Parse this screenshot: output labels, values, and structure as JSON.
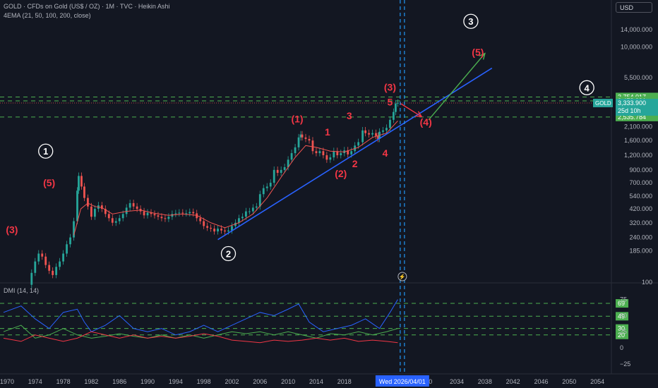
{
  "header": {
    "title": "GOLD · CFDs on Gold (US$ / OZ) · 1M · TVC · Heikin Ashi",
    "indicator": "4EMA (21, 50, 100, 200, close)",
    "currency": "USD"
  },
  "dmi_label": "DMI (14, 14)",
  "colors": {
    "bg": "#131722",
    "up": "#26a69a",
    "down": "#ef5350",
    "trendline": "#2962ff",
    "arrow_up": "#4caf50",
    "wave_red": "#f23645",
    "wave_white": "#ffffff",
    "dashed_green": "#4caf50",
    "cursor_line": "#2196f3"
  },
  "chart_data": [
    {
      "type": "candlestick",
      "scale": "log",
      "price_axis_ticks": [
        "14,000.000",
        "10,000.000",
        "5,500.000",
        "2,100.000",
        "1,600.000",
        "1,200.000",
        "900.000",
        "700.000",
        "540.000",
        "420.000",
        "320.000",
        "240.000",
        "185.000",
        "100"
      ],
      "price_axis_values": [
        14000,
        10000,
        5500,
        2100,
        1600,
        1200,
        900,
        700,
        540,
        420,
        320,
        240,
        185,
        100
      ],
      "ylim": [
        100,
        19000
      ],
      "price_labels": [
        {
          "text": "3,754.017",
          "value": 3754.017,
          "color": "#4caf50"
        },
        {
          "text": "3,478.991",
          "value": 3478.991,
          "color": "#4caf50"
        },
        {
          "text": "2,535.784",
          "value": 2535.784,
          "color": "#4caf50"
        }
      ],
      "current_price": {
        "symbol": "GOLD",
        "price": "3,333.900",
        "countdown": "25d 10h",
        "value": 3333.9
      },
      "time_axis_ticks": [
        "1970",
        "1974",
        "1978",
        "1982",
        "1986",
        "1990",
        "1994",
        "1998",
        "2002",
        "2006",
        "2010",
        "2014",
        "2018",
        "30",
        "2034",
        "2038",
        "2042",
        "2046",
        "2050",
        "2054"
      ],
      "time_axis_years": [
        1970,
        1974,
        1978,
        1982,
        1986,
        1990,
        1994,
        1998,
        2002,
        2006,
        2010,
        2014,
        2018,
        2030,
        2034,
        2038,
        2042,
        2046,
        2050,
        2054
      ],
      "xlim": [
        1969.0,
        2056.0
      ],
      "cursor_date_label": "Wed 2026/04/01",
      "cursor_year": 2026.25,
      "price_series": [
        [
          1973.0,
          95
        ],
        [
          1973.5,
          120
        ],
        [
          1974.0,
          150
        ],
        [
          1974.5,
          175
        ],
        [
          1975.0,
          165
        ],
        [
          1975.5,
          140
        ],
        [
          1976.0,
          125
        ],
        [
          1976.5,
          115
        ],
        [
          1977.0,
          135
        ],
        [
          1977.5,
          150
        ],
        [
          1978.0,
          175
        ],
        [
          1978.5,
          210
        ],
        [
          1979.0,
          240
        ],
        [
          1979.5,
          330
        ],
        [
          1980.0,
          600
        ],
        [
          1980.2,
          800
        ],
        [
          1980.6,
          650
        ],
        [
          1981.0,
          520
        ],
        [
          1981.5,
          440
        ],
        [
          1982.0,
          360
        ],
        [
          1982.5,
          420
        ],
        [
          1983.0,
          450
        ],
        [
          1983.5,
          420
        ],
        [
          1984.0,
          380
        ],
        [
          1984.5,
          350
        ],
        [
          1985.0,
          320
        ],
        [
          1985.5,
          330
        ],
        [
          1986.0,
          350
        ],
        [
          1986.5,
          380
        ],
        [
          1987.0,
          430
        ],
        [
          1987.5,
          470
        ],
        [
          1988.0,
          440
        ],
        [
          1988.5,
          420
        ],
        [
          1989.0,
          400
        ],
        [
          1989.5,
          370
        ],
        [
          1990.0,
          390
        ],
        [
          1990.5,
          380
        ],
        [
          1991.0,
          370
        ],
        [
          1991.5,
          360
        ],
        [
          1992.0,
          350
        ],
        [
          1992.5,
          345
        ],
        [
          1993.0,
          360
        ],
        [
          1993.5,
          380
        ],
        [
          1994.0,
          385
        ],
        [
          1994.5,
          390
        ],
        [
          1995.0,
          385
        ],
        [
          1995.5,
          385
        ],
        [
          1996.0,
          395
        ],
        [
          1996.5,
          385
        ],
        [
          1997.0,
          350
        ],
        [
          1997.5,
          330
        ],
        [
          1998.0,
          300
        ],
        [
          1998.5,
          290
        ],
        [
          1999.0,
          285
        ],
        [
          1999.5,
          270
        ],
        [
          2000.0,
          285
        ],
        [
          2000.5,
          275
        ],
        [
          2001.0,
          270
        ],
        [
          2001.5,
          275
        ],
        [
          2002.0,
          300
        ],
        [
          2002.5,
          320
        ],
        [
          2003.0,
          350
        ],
        [
          2003.5,
          360
        ],
        [
          2004.0,
          400
        ],
        [
          2004.5,
          400
        ],
        [
          2005.0,
          430
        ],
        [
          2005.5,
          440
        ],
        [
          2006.0,
          560
        ],
        [
          2006.5,
          630
        ],
        [
          2007.0,
          650
        ],
        [
          2007.5,
          700
        ],
        [
          2008.0,
          900
        ],
        [
          2008.5,
          850
        ],
        [
          2009.0,
          900
        ],
        [
          2009.5,
          950
        ],
        [
          2010.0,
          1100
        ],
        [
          2010.5,
          1250
        ],
        [
          2011.0,
          1400
        ],
        [
          2011.5,
          1700
        ],
        [
          2011.8,
          1800
        ],
        [
          2012.0,
          1700
        ],
        [
          2012.5,
          1650
        ],
        [
          2013.0,
          1600
        ],
        [
          2013.5,
          1300
        ],
        [
          2014.0,
          1250
        ],
        [
          2014.5,
          1300
        ],
        [
          2015.0,
          1200
        ],
        [
          2015.5,
          1100
        ],
        [
          2016.0,
          1150
        ],
        [
          2016.5,
          1300
        ],
        [
          2017.0,
          1200
        ],
        [
          2017.5,
          1250
        ],
        [
          2018.0,
          1320
        ],
        [
          2018.5,
          1220
        ],
        [
          2019.0,
          1300
        ],
        [
          2019.5,
          1450
        ],
        [
          2020.0,
          1550
        ],
        [
          2020.6,
          1950
        ],
        [
          2021.0,
          1850
        ],
        [
          2021.5,
          1800
        ],
        [
          2022.0,
          1850
        ],
        [
          2022.5,
          1750
        ],
        [
          2022.8,
          1650
        ],
        [
          2023.0,
          1900
        ],
        [
          2023.5,
          1950
        ],
        [
          2024.0,
          2050
        ],
        [
          2024.5,
          2400
        ],
        [
          2025.0,
          2800
        ],
        [
          2025.3,
          3300
        ],
        [
          2025.6,
          3350
        ]
      ],
      "ema_series": [
        [
          1979.5,
          250
        ],
        [
          1980.5,
          420
        ],
        [
          1981.5,
          470
        ],
        [
          1982.5,
          440
        ],
        [
          1983.5,
          430
        ],
        [
          1985.0,
          380
        ],
        [
          1987.0,
          400
        ],
        [
          1989.0,
          410
        ],
        [
          1991.0,
          385
        ],
        [
          1993.0,
          370
        ],
        [
          1995.0,
          380
        ],
        [
          1997.0,
          370
        ],
        [
          1999.0,
          320
        ],
        [
          2001.0,
          290
        ],
        [
          2003.0,
          320
        ],
        [
          2005.0,
          380
        ],
        [
          2007.0,
          520
        ],
        [
          2009.0,
          780
        ],
        [
          2011.0,
          1150
        ],
        [
          2012.5,
          1450
        ],
        [
          2014.0,
          1400
        ],
        [
          2016.0,
          1300
        ],
        [
          2018.0,
          1280
        ],
        [
          2020.0,
          1400
        ],
        [
          2022.0,
          1700
        ],
        [
          2024.0,
          1850
        ],
        [
          2025.6,
          2350
        ]
      ],
      "trendline": {
        "from": [
          2000.0,
          230
        ],
        "to": [
          2039.0,
          6600
        ]
      },
      "horizontal_levels": [
        3754.017,
        3478.991,
        2535.784
      ],
      "projection_arrow_up": {
        "from": [
          2030.0,
          2400
        ],
        "to": [
          2038.0,
          8800
        ]
      },
      "projection_arrow_down": {
        "from": [
          2026.0,
          3300
        ],
        "to": [
          2029.0,
          2550
        ]
      },
      "dotted_level": 3333.9,
      "wave_labels": [
        {
          "text": "(3)",
          "x": 1970.7,
          "y": 280,
          "color": "#f23645",
          "circled": false
        },
        {
          "text": "(5)",
          "x": 1976.0,
          "y": 700,
          "color": "#f23645",
          "circled": false
        },
        {
          "text": "1",
          "x": 1975.5,
          "y": 1300,
          "color": "#ffffff",
          "circled": true
        },
        {
          "text": "2",
          "x": 2001.5,
          "y": 175,
          "color": "#ffffff",
          "circled": true
        },
        {
          "text": "(1)",
          "x": 2011.3,
          "y": 2450,
          "color": "#f23645",
          "circled": false
        },
        {
          "text": "1",
          "x": 2015.6,
          "y": 1900,
          "color": "#f23645",
          "circled": false
        },
        {
          "text": "3",
          "x": 2018.7,
          "y": 2600,
          "color": "#f23645",
          "circled": false
        },
        {
          "text": "2",
          "x": 2019.5,
          "y": 1020,
          "color": "#f23645",
          "circled": false
        },
        {
          "text": "(2)",
          "x": 2017.5,
          "y": 840,
          "color": "#f23645",
          "circled": false
        },
        {
          "text": "4",
          "x": 2023.8,
          "y": 1250,
          "color": "#f23645",
          "circled": false
        },
        {
          "text": "5",
          "x": 2024.5,
          "y": 3400,
          "color": "#f23645",
          "circled": false
        },
        {
          "text": "(3)",
          "x": 2024.5,
          "y": 4550,
          "color": "#f23645",
          "circled": false
        },
        {
          "text": "(4)",
          "x": 2029.6,
          "y": 2300,
          "color": "#f23645",
          "circled": false
        },
        {
          "text": "(5)",
          "x": 2037.0,
          "y": 9000,
          "color": "#f23645",
          "circled": false
        },
        {
          "text": "3",
          "x": 2036.0,
          "y": 16500,
          "color": "#ffffff",
          "circled": true
        },
        {
          "text": "4",
          "x": 2052.5,
          "y": 4500,
          "color": "#ffffff",
          "circled": true
        }
      ]
    },
    {
      "type": "line",
      "title": "DMI (14, 14)",
      "ylim": [
        -35,
        80
      ],
      "axis_ticks": [
        "75",
        "50",
        "25",
        "0",
        "−25"
      ],
      "axis_values": [
        75,
        50,
        25,
        0,
        -25
      ],
      "level_labels": [
        {
          "text": "69",
          "value": 69
        },
        {
          "text": "49",
          "value": 49
        },
        {
          "text": "30",
          "value": 30
        },
        {
          "text": "20",
          "value": 20
        }
      ],
      "series": [
        {
          "color": "#2962ff",
          "values": [
            [
              1969.5,
              55
            ],
            [
              1972,
              65
            ],
            [
              1974,
              45
            ],
            [
              1976,
              30
            ],
            [
              1978,
              55
            ],
            [
              1980,
              60
            ],
            [
              1981,
              40
            ],
            [
              1982,
              25
            ],
            [
              1984,
              35
            ],
            [
              1986,
              50
            ],
            [
              1988,
              30
            ],
            [
              1990,
              25
            ],
            [
              1992,
              30
            ],
            [
              1994,
              20
            ],
            [
              1996,
              25
            ],
            [
              1998,
              35
            ],
            [
              2000,
              25
            ],
            [
              2002,
              35
            ],
            [
              2004,
              45
            ],
            [
              2006,
              55
            ],
            [
              2008,
              50
            ],
            [
              2010,
              60
            ],
            [
              2011.5,
              68
            ],
            [
              2013,
              40
            ],
            [
              2015,
              25
            ],
            [
              2017,
              30
            ],
            [
              2019,
              35
            ],
            [
              2021,
              45
            ],
            [
              2023,
              30
            ],
            [
              2024.5,
              55
            ],
            [
              2025.6,
              75
            ]
          ]
        },
        {
          "color": "#4caf50",
          "values": [
            [
              1969.5,
              25
            ],
            [
              1972,
              35
            ],
            [
              1974,
              15
            ],
            [
              1976,
              20
            ],
            [
              1978,
              30
            ],
            [
              1980,
              20
            ],
            [
              1982,
              15
            ],
            [
              1984,
              18
            ],
            [
              1986,
              22
            ],
            [
              1988,
              18
            ],
            [
              1990,
              15
            ],
            [
              1992,
              20
            ],
            [
              1994,
              15
            ],
            [
              1996,
              20
            ],
            [
              1998,
              15
            ],
            [
              2000,
              20
            ],
            [
              2002,
              25
            ],
            [
              2004,
              22
            ],
            [
              2006,
              25
            ],
            [
              2008,
              20
            ],
            [
              2010,
              25
            ],
            [
              2012,
              20
            ],
            [
              2014,
              15
            ],
            [
              2016,
              22
            ],
            [
              2018,
              20
            ],
            [
              2020,
              25
            ],
            [
              2022,
              20
            ],
            [
              2024,
              25
            ],
            [
              2025.6,
              30
            ]
          ]
        },
        {
          "color": "#f23645",
          "values": [
            [
              1969.5,
              15
            ],
            [
              1972,
              10
            ],
            [
              1974,
              20
            ],
            [
              1976,
              15
            ],
            [
              1978,
              10
            ],
            [
              1980,
              15
            ],
            [
              1982,
              25
            ],
            [
              1984,
              20
            ],
            [
              1986,
              15
            ],
            [
              1988,
              20
            ],
            [
              1990,
              15
            ],
            [
              1992,
              18
            ],
            [
              1994,
              15
            ],
            [
              1996,
              18
            ],
            [
              1998,
              22
            ],
            [
              2000,
              18
            ],
            [
              2002,
              12
            ],
            [
              2004,
              10
            ],
            [
              2006,
              8
            ],
            [
              2008,
              12
            ],
            [
              2010,
              10
            ],
            [
              2012,
              12
            ],
            [
              2014,
              15
            ],
            [
              2016,
              12
            ],
            [
              2018,
              15
            ],
            [
              2020,
              10
            ],
            [
              2022,
              12
            ],
            [
              2024,
              10
            ],
            [
              2025.6,
              8
            ]
          ]
        }
      ]
    }
  ]
}
